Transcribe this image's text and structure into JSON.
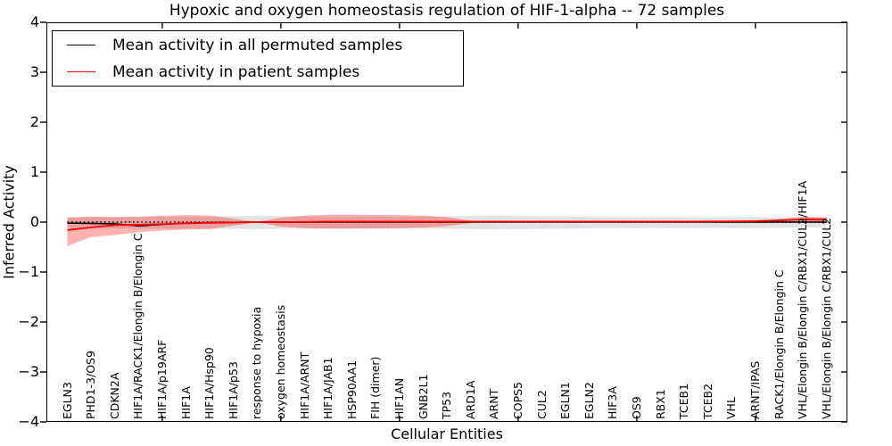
{
  "title": "Hypoxic and oxygen homeostasis regulation of HIF-1-alpha -- 72 samples",
  "xlabel": "Cellular Entities",
  "ylabel": "Inferred Activity",
  "legend": {
    "entries": [
      {
        "label": "Mean activity in all permuted samples",
        "color": "#000000"
      },
      {
        "label": "Mean activity in patient samples",
        "color": "#ff0000"
      }
    ]
  },
  "chart_data": {
    "type": "line",
    "categories": [
      "EGLN3",
      "PHD1-3/OS9",
      "CDKN2A",
      "HIF1A/RACK1/Elongin B/Elongin C",
      "HIF1A/p19ARF",
      "HIF1A",
      "HIF1A/Hsp90",
      "HIF1A/p53",
      "response to hypoxia",
      "oxygen homeostasis",
      "HIF1A/ARNT",
      "HIF1A/JAB1",
      "HSP90AA1",
      "FIH (dimer)",
      "HIF1AN",
      "GNB2L1",
      "TP53",
      "ARD1A",
      "ARNT",
      "COPS5",
      "CUL2",
      "EGLN1",
      "EGLN2",
      "HIF3A",
      "OS9",
      "RBX1",
      "TCEB1",
      "TCEB2",
      "VHL",
      "ARNT/IPAS",
      "RACK1/Elongin B/Elongin C",
      "VHL/Elongin B/Elongin C/RBX1/CUL2/HIF1A",
      "VHL/Elongin B/Elongin C/RBX1/CUL2"
    ],
    "series": [
      {
        "name": "Mean activity in all permuted samples",
        "color": "#000000",
        "values": [
          -0.02,
          -0.025,
          -0.035,
          -0.075,
          -0.045,
          -0.02,
          -0.01,
          -0.005,
          0,
          0,
          0,
          0,
          0,
          0,
          0,
          0,
          0,
          0,
          0,
          0,
          0,
          0,
          0,
          0,
          0,
          0,
          0,
          0,
          0,
          0,
          0,
          0,
          0
        ]
      },
      {
        "name": "Mean activity in patient samples",
        "color": "#ff0000",
        "values": [
          -0.16,
          -0.105,
          -0.06,
          -0.055,
          -0.04,
          -0.025,
          -0.015,
          -0.008,
          0,
          0,
          0.005,
          0.01,
          0.01,
          0.01,
          0.01,
          0.01,
          0.01,
          0.01,
          0.01,
          0.01,
          0.01,
          0.01,
          0.01,
          0.01,
          0.01,
          0.01,
          0.01,
          0.012,
          0.015,
          0.02,
          0.035,
          0.055,
          0.05
        ]
      }
    ],
    "bands": [
      {
        "name": "permuted-samples-band",
        "color": "rgba(0,0,0,0.11)",
        "upper": [
          0.1,
          0.1,
          0.1,
          0.105,
          0.11,
          0.11,
          0.11,
          0.115,
          0.125,
          0.12,
          0.115,
          0.11,
          0.11,
          0.11,
          0.11,
          0.11,
          0.115,
          0.12,
          0.125,
          0.12,
          0.115,
          0.11,
          0.105,
          0.1,
          0.1,
          0.1,
          0.1,
          0.1,
          0.1,
          0.1,
          0.095,
          0.09,
          0.09
        ],
        "lower": [
          -0.13,
          -0.13,
          -0.13,
          -0.13,
          -0.13,
          -0.13,
          -0.13,
          -0.135,
          -0.14,
          -0.135,
          -0.13,
          -0.13,
          -0.13,
          -0.13,
          -0.13,
          -0.13,
          -0.135,
          -0.14,
          -0.145,
          -0.14,
          -0.135,
          -0.13,
          -0.125,
          -0.12,
          -0.12,
          -0.12,
          -0.12,
          -0.12,
          -0.12,
          -0.12,
          -0.115,
          -0.11,
          -0.11
        ]
      },
      {
        "name": "patient-samples-band",
        "color": "rgba(255,0,0,0.30)",
        "upper": [
          0.09,
          0.11,
          0.1,
          0.11,
          0.13,
          0.14,
          0.135,
          0.07,
          0.005,
          0.09,
          0.13,
          0.15,
          0.15,
          0.145,
          0.14,
          0.13,
          0.1,
          0.03,
          0,
          0,
          0,
          0,
          0,
          0,
          0,
          0,
          0,
          0,
          0,
          0.01,
          0.06,
          0.11,
          0.1
        ],
        "lower": [
          -0.48,
          -0.3,
          -0.26,
          -0.2,
          -0.17,
          -0.15,
          -0.14,
          -0.07,
          -0.005,
          -0.09,
          -0.12,
          -0.13,
          -0.13,
          -0.125,
          -0.12,
          -0.11,
          -0.08,
          -0.02,
          0,
          0,
          0,
          0,
          0,
          0,
          0,
          0,
          0,
          0,
          0,
          0,
          -0.005,
          -0.01,
          -0.02
        ]
      }
    ],
    "zero_line": {
      "value": 0,
      "style": "dotted",
      "color": "#000000"
    },
    "ylim": [
      -4,
      4
    ],
    "yticks": [
      4,
      3,
      2,
      1,
      0,
      -1,
      -2,
      -3,
      -4
    ],
    "ytick_labels": [
      "4",
      "3",
      "2",
      "1",
      "0",
      "−1",
      "−2",
      "−3",
      "−4"
    ],
    "xtick_positions": [
      5,
      10,
      15,
      20,
      25,
      30
    ],
    "legend_position": "upper left",
    "grid": false
  }
}
